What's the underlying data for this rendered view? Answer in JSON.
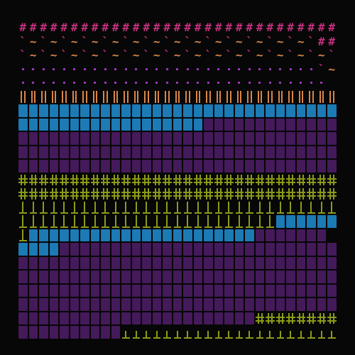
{
  "board": {
    "rows": [
      "###############################",
      "`~`~`~`~`~`~`~`~`~`~`~`~`~`~`##",
      "`~`~`~`~`~`~`~`~`~`~`~`~`~`~`~`",
      ".............................`~",
      ".............................. ",
      "|||||||||||||||||||||||||||||||",
      "===============================",
      "==================+++++++++++++",
      "+++++++++++++++++++++++++++++++",
      "+++++++++++++++++++++++++++++++",
      "+++++++++++++++++++++++++++++++",
      "ttttttttttttttttttttttttttttttt",
      "ttttttttttttttttttttttttttttttt",
      "lllllllllllllllllllllllllllllll",
      "lllllllllllllllllllllllll======",
      "l======================+++++++",
      "====++++++++++++++++++++++++++++",
      "+++++++++++++++++++++++++++++++",
      "+++++++++++++++++++++++++++++++",
      "+++++++++++++++++++++++++++++++",
      "+++++++++++++++++++++++++++++++",
      "+++++++++++++++++++++++tttttttt",
      "++++++++++_____________________"
    ],
    "legend": {
      "#": {
        "kind": "glyph",
        "char": "#",
        "color": "#c2317f"
      },
      "`": {
        "kind": "glyph",
        "char": "`",
        "color": "#c2317f"
      },
      "~": {
        "kind": "glyph",
        "char": "~",
        "color": "#d8864a"
      },
      ".": {
        "kind": "dot",
        "color": "#9b35b8"
      },
      "|": {
        "kind": "pillar",
        "color": "#d8864a"
      },
      "=": {
        "kind": "tile",
        "color": "#1f86c6"
      },
      "+": {
        "kind": "tile",
        "color": "#4a1d63"
      },
      "t": {
        "kind": "fence",
        "color": "#8c9a19"
      },
      "l": {
        "kind": "post",
        "color": "#8c9a19"
      },
      "_": {
        "kind": "stake",
        "color": "#8c9a19"
      },
      " ": {
        "kind": "empty",
        "color": "#070707"
      }
    }
  }
}
